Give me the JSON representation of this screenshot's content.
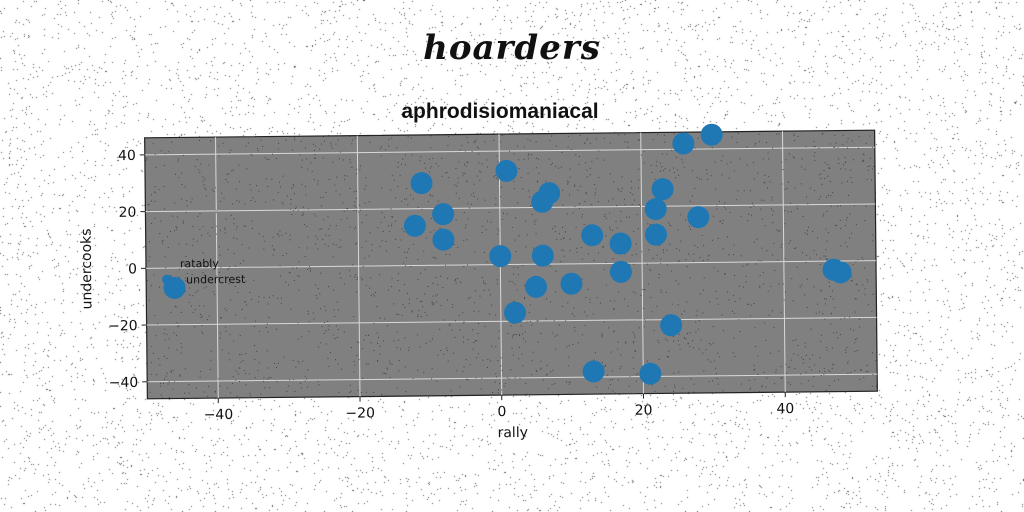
{
  "suptitle": "hoarders",
  "chart_data": {
    "type": "scatter",
    "title": "aphrodisiomaniacal",
    "xlabel": "rally",
    "ylabel": "undercooks",
    "xlim": [
      -50,
      53
    ],
    "ylim": [
      -46,
      46
    ],
    "xticks": [
      -40,
      -20,
      0,
      20,
      40
    ],
    "yticks": [
      -40,
      -20,
      0,
      20,
      40
    ],
    "grid": true,
    "background": "#808080",
    "legend": {
      "title": "ratably",
      "placement": "center-left",
      "entries": [
        "undercrest"
      ]
    },
    "series": [
      {
        "name": "undercrest",
        "color": "#1f77b4",
        "points": [
          [
            -46,
            -7
          ],
          [
            -11,
            29
          ],
          [
            -12,
            14
          ],
          [
            -8,
            18
          ],
          [
            -8,
            9
          ],
          [
            1,
            33
          ],
          [
            0,
            3
          ],
          [
            7,
            25
          ],
          [
            6,
            22
          ],
          [
            6,
            3
          ],
          [
            2,
            -17
          ],
          [
            5,
            -8
          ],
          [
            10,
            -7
          ],
          [
            13,
            10
          ],
          [
            17,
            7
          ],
          [
            17,
            -3
          ],
          [
            13,
            -38
          ],
          [
            22,
            19
          ],
          [
            22,
            10
          ],
          [
            23,
            26
          ],
          [
            26,
            42
          ],
          [
            24,
            -22
          ],
          [
            28,
            16
          ],
          [
            30,
            45
          ],
          [
            21,
            -39
          ],
          [
            47,
            -3
          ],
          [
            48,
            -4
          ]
        ]
      }
    ]
  }
}
